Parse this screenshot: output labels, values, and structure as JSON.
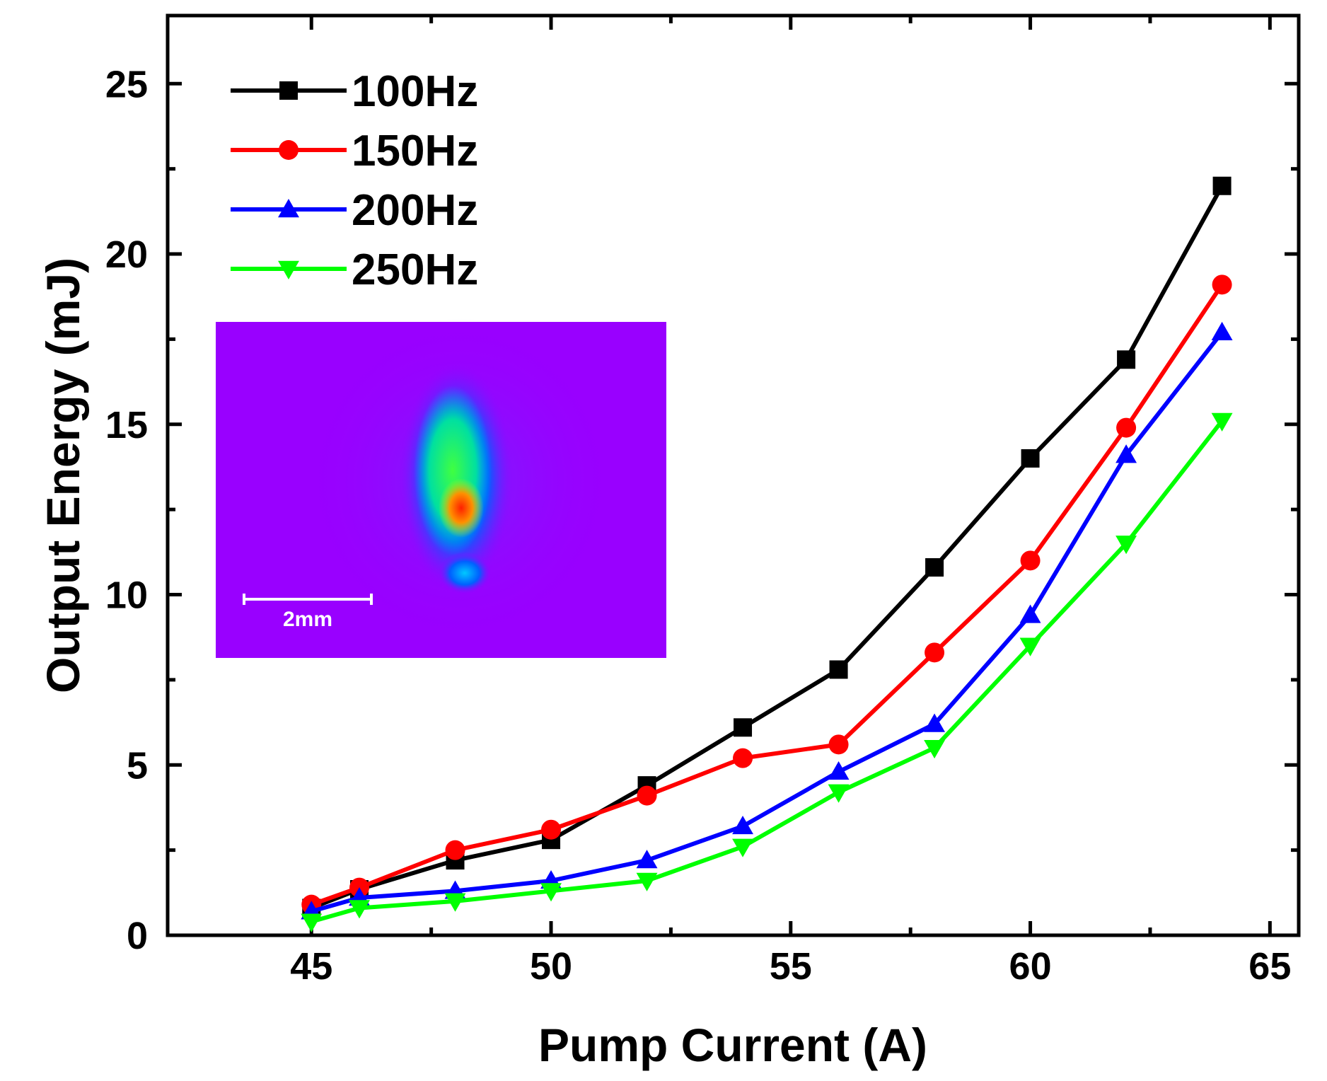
{
  "chart_data": {
    "type": "line",
    "title": "",
    "xlabel": "Pump Current (A)",
    "ylabel": "Output Energy (mJ)",
    "xlim": [
      42.0,
      65.6
    ],
    "ylim": [
      0,
      27
    ],
    "xticks": [
      45,
      50,
      55,
      60,
      65
    ],
    "yticks": [
      0,
      5,
      10,
      15,
      20,
      25
    ],
    "x": [
      45,
      46,
      48,
      50,
      52,
      54,
      56,
      58,
      60,
      62,
      64
    ],
    "series": [
      {
        "name": "100Hz",
        "color": "#000000",
        "marker": "square",
        "values": [
          0.8,
          1.35,
          2.2,
          2.8,
          4.4,
          6.1,
          7.8,
          10.8,
          14.0,
          16.9,
          22.0
        ]
      },
      {
        "name": "150Hz",
        "color": "#ff0000",
        "marker": "circle",
        "values": [
          0.9,
          1.4,
          2.5,
          3.1,
          4.1,
          5.2,
          5.6,
          8.3,
          11.0,
          14.9,
          19.1
        ]
      },
      {
        "name": "200Hz",
        "color": "#0000ff",
        "marker": "triangle-up",
        "values": [
          0.7,
          1.1,
          1.3,
          1.6,
          2.2,
          3.2,
          4.8,
          6.2,
          9.4,
          14.1,
          17.7
        ]
      },
      {
        "name": "250Hz",
        "color": "#00ff00",
        "marker": "triangle-down",
        "values": [
          0.4,
          0.8,
          1.0,
          1.3,
          1.6,
          2.6,
          4.2,
          5.5,
          8.5,
          11.5,
          15.1
        ]
      }
    ],
    "legend": "top-left",
    "grid": false
  },
  "inset": {
    "description_color_bg": "#9900ff",
    "scale_bar_label": "2mm"
  }
}
